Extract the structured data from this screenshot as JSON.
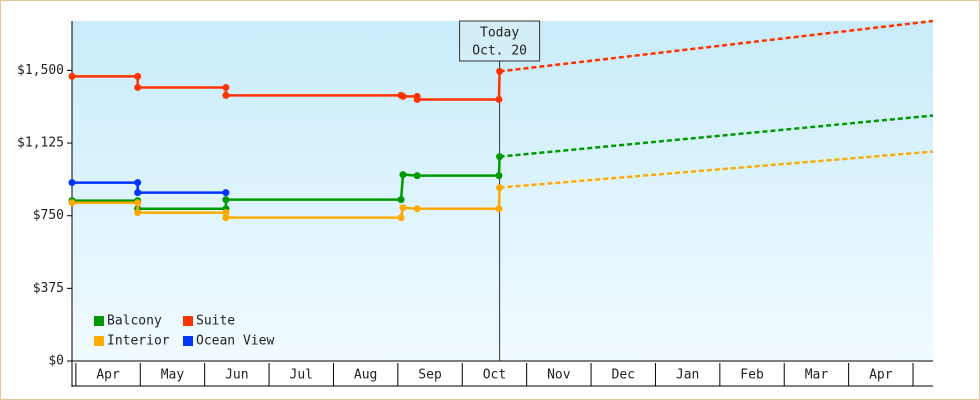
{
  "chart_data": {
    "type": "line",
    "annotation": {
      "title": "Today",
      "label": "Oct. 20",
      "x": 6.58
    },
    "xlim": [
      -0.06,
      13.31
    ],
    "xticks": [
      {
        "value": 0.5,
        "label": "Apr"
      },
      {
        "value": 1.5,
        "label": "May"
      },
      {
        "value": 2.5,
        "label": "Jun"
      },
      {
        "value": 3.5,
        "label": "Jul"
      },
      {
        "value": 4.5,
        "label": "Aug"
      },
      {
        "value": 5.5,
        "label": "Sep"
      },
      {
        "value": 6.5,
        "label": "Oct"
      },
      {
        "value": 7.5,
        "label": "Nov"
      },
      {
        "value": 8.5,
        "label": "Dec"
      },
      {
        "value": 9.5,
        "label": "Jan"
      },
      {
        "value": 10.5,
        "label": "Feb"
      },
      {
        "value": 11.5,
        "label": "Mar"
      },
      {
        "value": 12.5,
        "label": "Apr"
      }
    ],
    "ylim": [
      0,
      1755
    ],
    "yticks": [
      {
        "value": 0,
        "label": "$0"
      },
      {
        "value": 375,
        "label": "$375"
      },
      {
        "value": 750,
        "label": "$750"
      },
      {
        "value": 1125,
        "label": "$1,125"
      },
      {
        "value": 1500,
        "label": "$1,500"
      }
    ],
    "grid": false,
    "legend": "lower left",
    "series": [
      {
        "name": "Balcony",
        "color": "#009900",
        "x": [
          -0.06,
          0.96,
          0.96,
          2.33,
          2.33,
          5.05,
          5.08,
          5.3,
          6.57,
          6.58
        ],
        "values": [
          828,
          828,
          786,
          786,
          833,
          833,
          962,
          957,
          957,
          1055
        ],
        "projection": {
          "x": [
            6.58,
            13.31
          ],
          "values": [
            1055,
            1267
          ]
        }
      },
      {
        "name": "Suite",
        "color": "#ff3300",
        "x": [
          -0.06,
          0.96,
          0.96,
          2.33,
          2.33,
          5.05,
          5.08,
          5.3,
          5.3,
          6.57,
          6.58
        ],
        "values": [
          1469,
          1469,
          1412,
          1412,
          1371,
          1371,
          1366,
          1366,
          1350,
          1350,
          1495
        ],
        "projection": {
          "x": [
            6.58,
            13.31
          ],
          "values": [
            1495,
            1755
          ]
        }
      },
      {
        "name": "Interior",
        "color": "#ffaa00",
        "x": [
          -0.06,
          0.96,
          0.96,
          2.33,
          2.33,
          5.05,
          5.08,
          5.3,
          6.57,
          6.58
        ],
        "values": [
          817,
          817,
          766,
          766,
          740,
          740,
          791,
          786,
          786,
          895
        ],
        "projection": {
          "x": [
            6.58,
            13.31
          ],
          "values": [
            895,
            1081
          ]
        }
      },
      {
        "name": "Ocean View",
        "color": "#0033ff",
        "x": [
          -0.06,
          0.96,
          0.96,
          2.33
        ],
        "values": [
          921,
          921,
          869,
          869
        ]
      }
    ]
  }
}
